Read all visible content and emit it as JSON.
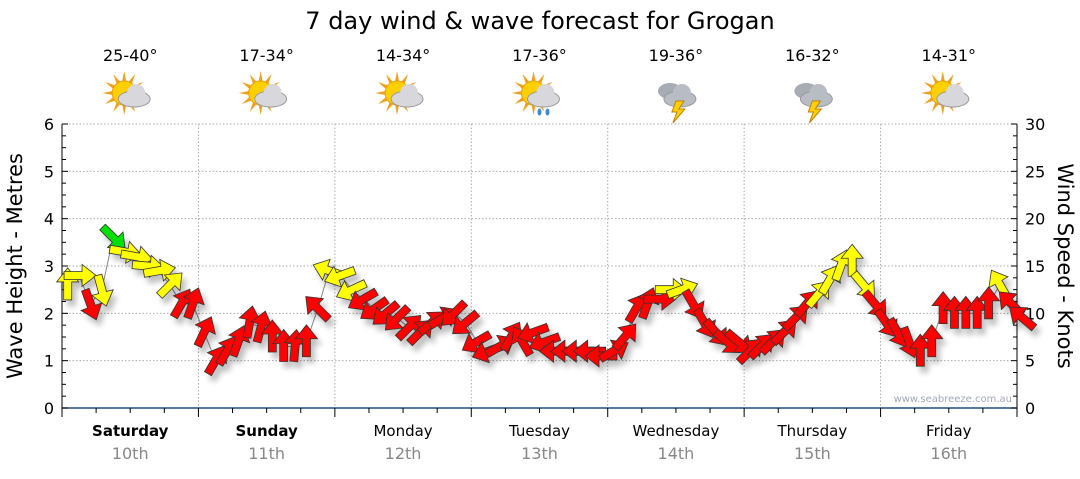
{
  "chart_data": {
    "type": "scatter",
    "title": "7 day wind & wave forecast for Grogan",
    "ylabel_left": "Wave Height - Metres",
    "ylabel_right": "Wind Speed - Knots",
    "ylim_left": [
      0,
      6
    ],
    "ylim_right": [
      0,
      30
    ],
    "yticks_left": [
      "0",
      "1",
      "2",
      "3",
      "4",
      "5",
      "6"
    ],
    "yticks_right": [
      "0",
      "5",
      "10",
      "15",
      "20",
      "25",
      "30"
    ],
    "grid": true,
    "watermark": "www.seabreeze.com.au",
    "colors": {
      "low": "#ff0000",
      "mid": "#ffff00",
      "high": "#00e000",
      "grid": "#aaaaaa",
      "axis": "#1f4f7f"
    },
    "days": [
      {
        "name": "Saturday",
        "date": "10th",
        "temp": "25-40°",
        "icon": "partly-cloudy-icon",
        "weekend": true
      },
      {
        "name": "Sunday",
        "date": "11th",
        "temp": "17-34°",
        "icon": "partly-cloudy-icon",
        "weekend": true
      },
      {
        "name": "Monday",
        "date": "12th",
        "temp": "14-34°",
        "icon": "partly-cloudy-icon",
        "weekend": false
      },
      {
        "name": "Tuesday",
        "date": "13th",
        "temp": "17-36°",
        "icon": "showers-icon",
        "weekend": false
      },
      {
        "name": "Wednesday",
        "date": "14th",
        "temp": "19-36°",
        "icon": "thunderstorm-icon",
        "weekend": false
      },
      {
        "name": "Thursday",
        "date": "15th",
        "temp": "16-32°",
        "icon": "thunderstorm-icon",
        "weekend": false
      },
      {
        "name": "Friday",
        "date": "16th",
        "temp": "14-31°",
        "icon": "partly-cloudy-icon",
        "weekend": false
      }
    ],
    "wind": {
      "points_per_day": 12,
      "speed_knots": [
        13,
        14,
        11,
        12.5,
        18,
        16.5,
        16,
        15,
        14.5,
        13,
        11,
        11,
        8,
        5,
        6,
        7,
        9,
        8.5,
        7.5,
        6.5,
        6.5,
        7,
        10.5,
        14.5,
        14,
        12.5,
        11.5,
        10.5,
        10,
        9.5,
        8.5,
        8,
        9,
        9.5,
        10,
        9,
        7,
        6,
        6.5,
        7.5,
        7,
        8,
        7,
        6,
        6,
        6,
        6,
        5.5,
        6,
        7.5,
        10.5,
        11,
        11.5,
        12.5,
        12.5,
        11,
        9,
        8,
        7,
        7,
        6,
        6.5,
        7,
        8,
        9.5,
        11,
        12,
        13.5,
        15,
        15.5,
        13,
        11,
        9,
        8,
        7,
        6,
        7,
        10.5,
        10,
        10,
        10,
        11,
        13,
        11,
        9.5
      ],
      "direction_deg": [
        0,
        90,
        160,
        165,
        135,
        100,
        100,
        95,
        80,
        45,
        30,
        20,
        25,
        30,
        30,
        20,
        10,
        15,
        0,
        0,
        5,
        0,
        315,
        290,
        250,
        245,
        240,
        235,
        230,
        225,
        45,
        45,
        50,
        60,
        225,
        230,
        240,
        250,
        60,
        30,
        330,
        250,
        250,
        270,
        270,
        270,
        270,
        270,
        60,
        40,
        30,
        20,
        90,
        90,
        70,
        150,
        150,
        140,
        130,
        130,
        45,
        45,
        45,
        45,
        45,
        40,
        40,
        30,
        20,
        0,
        140,
        140,
        145,
        150,
        160,
        0,
        0,
        0,
        0,
        0,
        0,
        0,
        330,
        315,
        310
      ]
    }
  }
}
